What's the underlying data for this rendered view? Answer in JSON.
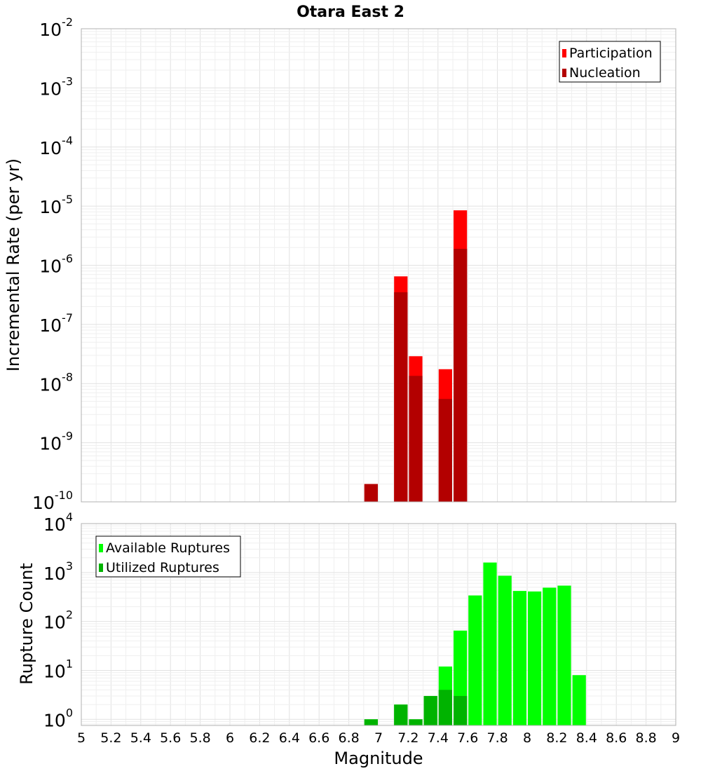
{
  "chart_data": [
    {
      "type": "bar",
      "panel": "top",
      "title": "Otara East 2",
      "xlabel": "",
      "ylabel": "Incremental Rate (per yr)",
      "xlim": [
        5,
        9
      ],
      "ylim": [
        1e-10,
        0.01
      ],
      "yscale": "log",
      "grid": true,
      "legend_position": "top-right",
      "y_tick_exponents": [
        "-10",
        "-9",
        "-8",
        "-7",
        "-6",
        "-5",
        "-4",
        "-3",
        "-2"
      ],
      "y_tick_base": "10",
      "bin_width": 0.1,
      "series": [
        {
          "name": "Participation",
          "color": "#ff0000",
          "x": [
            6.95,
            7.15,
            7.25,
            7.45,
            7.55
          ],
          "values": [
            2e-10,
            6.5e-07,
            2.9e-08,
            1.75e-08,
            8.5e-06
          ]
        },
        {
          "name": "Nucleation",
          "color": "#b30000",
          "x": [
            6.95,
            7.15,
            7.25,
            7.45,
            7.55
          ],
          "values": [
            2e-10,
            3.5e-07,
            1.35e-08,
            5.5e-09,
            1.9e-06
          ]
        }
      ]
    },
    {
      "type": "bar",
      "panel": "bottom",
      "xlabel": "Magnitude",
      "ylabel": "Rupture Count",
      "xlim": [
        5,
        9
      ],
      "ylim": [
        0.75,
        10000
      ],
      "yscale": "log",
      "grid": true,
      "legend_position": "top-left",
      "y_tick_exponents": [
        "0",
        "1",
        "2",
        "3",
        "4"
      ],
      "y_tick_base": "10",
      "x_tick_labels": [
        "5",
        "5.2",
        "5.4",
        "5.6",
        "5.8",
        "6",
        "6.2",
        "6.4",
        "6.6",
        "6.8",
        "7",
        "7.2",
        "7.4",
        "7.6",
        "7.8",
        "8",
        "8.2",
        "8.4",
        "8.6",
        "8.8",
        "9"
      ],
      "bin_width": 0.1,
      "series": [
        {
          "name": "Available Ruptures",
          "color": "#00ff00",
          "x": [
            6.95,
            7.15,
            7.25,
            7.35,
            7.45,
            7.55,
            7.65,
            7.75,
            7.85,
            7.95,
            8.05,
            8.15,
            8.25,
            8.35
          ],
          "values": [
            1,
            2,
            1,
            3,
            12,
            65,
            340,
            1600,
            860,
            420,
            410,
            490,
            540,
            8
          ]
        },
        {
          "name": "Utilized Ruptures",
          "color": "#00b300",
          "x": [
            6.95,
            7.15,
            7.25,
            7.35,
            7.45,
            7.55
          ],
          "values": [
            1,
            2,
            1,
            3,
            4,
            3
          ]
        }
      ]
    }
  ]
}
